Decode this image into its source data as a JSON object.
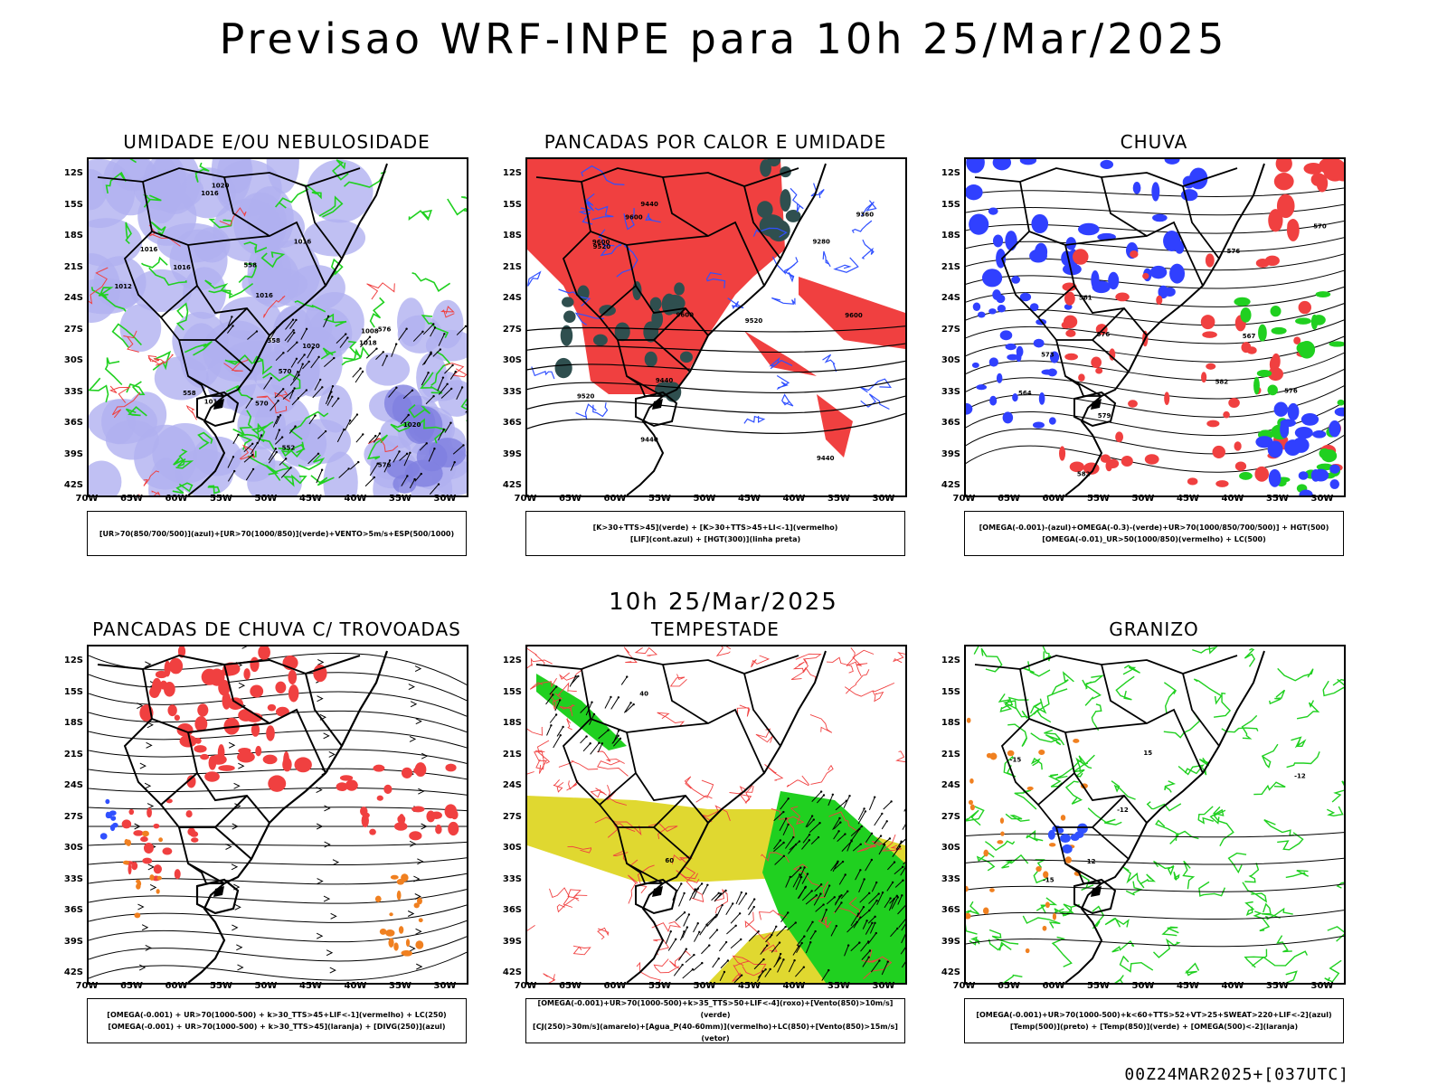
{
  "title": "Previsao WRF-INPE  para 10h 25/Mar/2025",
  "subtitle": "10h 25/Mar/2025",
  "footer": "00Z24MAR2025+[037UTC]",
  "lat_ticks": [
    "12S",
    "15S",
    "18S",
    "21S",
    "24S",
    "27S",
    "30S",
    "33S",
    "36S",
    "39S",
    "42S"
  ],
  "lon_ticks": [
    "70W",
    "65W",
    "60W",
    "55W",
    "50W",
    "45W",
    "40W",
    "35W",
    "30W"
  ],
  "panels": [
    {
      "title": "UMIDADE E/OU NEBULOSIDADE",
      "legend": [
        "[UR>70(850/700/500)](azul)+[UR>70(1000/850)](verde)+VENTO>5m/s+ESP(500/1000)"
      ],
      "contour_labels": [
        "1016",
        "1016",
        "1016",
        "1016",
        "1016",
        "1016",
        "1012",
        "1020",
        "1020",
        "1018",
        "1020",
        "1008",
        "576",
        "576",
        "570",
        "552",
        "558",
        "558",
        "558",
        "570"
      ]
    },
    {
      "title": "PANCADAS POR CALOR E UMIDADE",
      "legend": [
        "[K>30+TTS>45](verde)  +  [K>30+TTS>45+LI<-1](vermelho)",
        "[LIF](cont.azul)  +  [HGT(300)](linha preta)"
      ],
      "contour_labels": [
        "9600",
        "9600",
        "9600",
        "9440",
        "9520",
        "9520",
        "9520",
        "9440",
        "9440",
        "9360",
        "9280",
        "9440",
        "9600"
      ]
    },
    {
      "title": "CHUVA",
      "legend": [
        "[OMEGA(-0.001)-(azul)+OMEGA(-0.3)-(verde)+UR>70(1000/850/700/500)]  +  HGT(500)",
        "[OMEGA(-0.01)_UR>50(1000/850)(vermelho)  +  LC(500)"
      ],
      "contour_labels": [
        "582",
        "582",
        "576",
        "579",
        "576",
        "576",
        "573",
        "570",
        "567",
        "564",
        "561"
      ]
    },
    {
      "title": "PANCADAS DE CHUVA C/ TROVOADAS",
      "legend": [
        "[OMEGA(-0.001)  +  UR>70(1000-500)  +  k>30_TTS>45+LIF<-1](vermelho)  +  LC(250)",
        "[OMEGA(-0.001)  +  UR>70(1000-500)  +  k>30_TTS>45](laranja)  +  [DIVG(250)](azul)"
      ],
      "contour_labels": []
    },
    {
      "title": "TEMPESTADE",
      "legend": [
        "[OMEGA(-0.001)+UR>70(1000-500)+k>35_TTS>50+LIF<-4](roxo)+[Vento(850)>10m/s](verde)",
        "[CJ(250)>30m/s](amarelo)+[Agua_P(40-60mm)](vermelho)+LC(850)+[Vento(850)>15m/s](vetor)"
      ],
      "contour_labels": [
        "60",
        "40"
      ]
    },
    {
      "title": "GRANIZO",
      "legend": [
        "[OMEGA(-0.001)+UR>70(1000-500)+k<60+TTS>52+VT>25+SWEAT>220+LIF<-2](azul)",
        "[Temp(500)](preto)  +  [Temp(850)](verde)  +  [OMEGA(500)<-2](laranja)"
      ],
      "contour_labels": [
        "-12",
        "-15",
        "-15",
        "-12",
        "12",
        "15"
      ]
    }
  ],
  "colors": {
    "humid_blue": "#b0b0f0",
    "deep_blue": "#3040ff",
    "green": "#20d020",
    "red": "#f04040",
    "orange": "#f08020",
    "yellow": "#e0d830",
    "dark_teal": "#2f4f4f",
    "purple": "#a020f0",
    "black": "#000000"
  }
}
